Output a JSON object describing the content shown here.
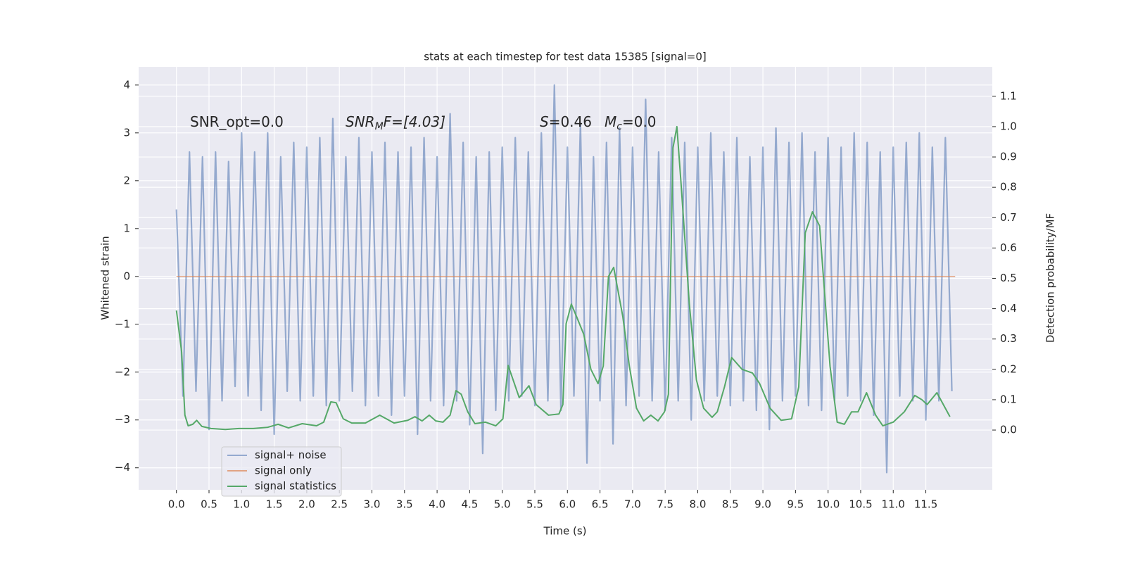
{
  "chart_data": {
    "type": "line",
    "title": "stats at each timestep for test data 15385 [signal=0]",
    "xlabel": "Time (s)",
    "ylabel": "Whitened strain",
    "y2label": "Detection probability/MF",
    "annotations": [
      {
        "plain": "SNR_opt=0.0"
      },
      {
        "italic": "SNR",
        "sub": "M",
        "plain": "F=[4.03]"
      },
      {
        "italic": "S",
        "plain": "=0.46"
      },
      {
        "italic": "M",
        "sub": "c",
        "plain": "=0.0"
      }
    ],
    "xlim": [
      -0.58,
      12.52
    ],
    "ylim": [
      -4.46,
      4.38
    ],
    "y2lim": [
      -0.197,
      1.197
    ],
    "xticks": [
      {
        "value": 0,
        "label": "0.0"
      },
      {
        "value": 0.5,
        "label": "0.5"
      },
      {
        "value": 1,
        "label": "1.0"
      },
      {
        "value": 1.5,
        "label": "1.5"
      },
      {
        "value": 2,
        "label": "2.0"
      },
      {
        "value": 2.5,
        "label": "2.5"
      },
      {
        "value": 3,
        "label": "3.0"
      },
      {
        "value": 3.5,
        "label": "3.5"
      },
      {
        "value": 4,
        "label": "4.0"
      },
      {
        "value": 4.5,
        "label": "4.5"
      },
      {
        "value": 5,
        "label": "5.0"
      },
      {
        "value": 5.5,
        "label": "5.5"
      },
      {
        "value": 6,
        "label": "6.0"
      },
      {
        "value": 6.5,
        "label": "6.5"
      },
      {
        "value": 7,
        "label": "7.0"
      },
      {
        "value": 7.5,
        "label": "7.5"
      },
      {
        "value": 8,
        "label": "8.0"
      },
      {
        "value": 8.5,
        "label": "8.5"
      },
      {
        "value": 9,
        "label": "9.0"
      },
      {
        "value": 9.5,
        "label": "9.5"
      },
      {
        "value": 10,
        "label": "10.0"
      },
      {
        "value": 10.5,
        "label": "10.5"
      },
      {
        "value": 11,
        "label": "11.0"
      },
      {
        "value": 11.5,
        "label": "11.5"
      }
    ],
    "yticks": [
      {
        "value": -4,
        "label": "−4"
      },
      {
        "value": -3,
        "label": "−3"
      },
      {
        "value": -2,
        "label": "−2"
      },
      {
        "value": -1,
        "label": "−1"
      },
      0,
      1,
      2,
      3,
      4
    ],
    "y2ticks": [
      {
        "value": 0,
        "label": "0.0"
      },
      {
        "value": 0.1,
        "label": "0.1"
      },
      {
        "value": 0.2,
        "label": "0.2"
      },
      {
        "value": 0.3,
        "label": "0.3"
      },
      {
        "value": 0.4,
        "label": "0.4"
      },
      {
        "value": 0.5,
        "label": "0.5"
      },
      {
        "value": 0.6,
        "label": "0.6"
      },
      {
        "value": 0.7,
        "label": "0.7"
      },
      {
        "value": 0.8,
        "label": "0.8"
      },
      {
        "value": 0.9,
        "label": "0.9"
      },
      {
        "value": 1,
        "label": "1.0"
      },
      {
        "value": 1.1,
        "label": "1.1"
      }
    ],
    "grid": true,
    "legend": "lower left",
    "series": [
      {
        "name": "signal+ noise",
        "color": "#4c72b0",
        "x": [
          0,
          0.1,
          0.2,
          0.3,
          0.4,
          0.5,
          0.6,
          0.7,
          0.8,
          0.9,
          1,
          1.1,
          1.2,
          1.3,
          1.4,
          1.5,
          1.6,
          1.7,
          1.8,
          1.9,
          2,
          2.1,
          2.2,
          2.3,
          2.4,
          2.5,
          2.6,
          2.7,
          2.8,
          2.9,
          3,
          3.1,
          3.2,
          3.3,
          3.4,
          3.5,
          3.6,
          3.7,
          3.8,
          3.9,
          4,
          4.1,
          4.2,
          4.3,
          4.4,
          4.5,
          4.6,
          4.7,
          4.8,
          4.9,
          5,
          5.1,
          5.2,
          5.3,
          5.4,
          5.5,
          5.6,
          5.7,
          5.8,
          5.9,
          6,
          6.1,
          6.2,
          6.3,
          6.4,
          6.5,
          6.6,
          6.7,
          6.8,
          6.9,
          7,
          7.1,
          7.2,
          7.3,
          7.4,
          7.5,
          7.6,
          7.7,
          7.8,
          7.9,
          8,
          8.1,
          8.2,
          8.3,
          8.4,
          8.5,
          8.6,
          8.7,
          8.8,
          8.9,
          9,
          9.1,
          9.2,
          9.3,
          9.4,
          9.5,
          9.6,
          9.7,
          9.8,
          9.9,
          10,
          10.1,
          10.2,
          10.3,
          10.4,
          10.5,
          10.6,
          10.7,
          10.8,
          10.9,
          11,
          11.1,
          11.2,
          11.3,
          11.4,
          11.5,
          11.6,
          11.7,
          11.8,
          11.9
        ],
        "values": [
          1.4,
          -2.5,
          2.6,
          -2.4,
          2.5,
          -3.2,
          2.6,
          -2.6,
          2.4,
          -2.3,
          3.0,
          -2.5,
          2.6,
          -2.8,
          3.0,
          -3.3,
          2.5,
          -2.4,
          2.8,
          -2.6,
          2.7,
          -2.5,
          2.9,
          -2.7,
          3.3,
          -2.6,
          2.5,
          -2.4,
          2.9,
          -2.7,
          2.6,
          -2.5,
          2.8,
          -2.9,
          2.6,
          -2.5,
          2.7,
          -3.3,
          2.9,
          -2.6,
          2.5,
          -2.7,
          3.4,
          -2.6,
          2.8,
          -3.1,
          2.5,
          -3.7,
          2.6,
          -2.8,
          2.7,
          -2.6,
          2.9,
          -2.5,
          2.6,
          -2.7,
          3.0,
          -2.6,
          4.0,
          -2.8,
          2.7,
          -2.5,
          3.2,
          -3.9,
          2.5,
          -2.6,
          2.8,
          -3.5,
          3.1,
          -2.7,
          2.7,
          -2.5,
          3.7,
          -2.6,
          2.6,
          -2.8,
          2.9,
          -2.6,
          2.8,
          -3.0,
          2.7,
          -2.6,
          3.0,
          -2.5,
          2.6,
          -2.7,
          2.9,
          -2.6,
          2.5,
          -2.8,
          2.7,
          -3.2,
          3.1,
          -2.6,
          2.8,
          -2.5,
          3.0,
          -2.7,
          2.6,
          -2.8,
          2.9,
          -2.6,
          2.7,
          -2.5,
          3.0,
          -2.6,
          2.8,
          -2.9,
          2.6,
          -4.1,
          2.7,
          -2.5,
          2.8,
          -2.6,
          3.0,
          -3.0,
          2.7,
          -2.6,
          2.9,
          -2.4
        ]
      },
      {
        "name": "signal only",
        "color": "#dd8452",
        "x": [
          0,
          11.95
        ],
        "values": [
          0,
          0
        ]
      },
      {
        "name": "signal statistics",
        "color": "#55a868",
        "axis": "y2",
        "x": [
          0,
          0.08,
          0.13,
          0.18,
          0.25,
          0.31,
          0.39,
          0.53,
          0.75,
          0.96,
          1.18,
          1.4,
          1.56,
          1.72,
          1.93,
          2.15,
          2.26,
          2.37,
          2.45,
          2.56,
          2.69,
          2.9,
          3.12,
          3.34,
          3.55,
          3.66,
          3.77,
          3.88,
          3.98,
          4.09,
          4.2,
          4.29,
          4.37,
          4.47,
          4.58,
          4.74,
          4.9,
          5.01,
          5.09,
          5.26,
          5.33,
          5.41,
          5.52,
          5.71,
          5.87,
          5.93,
          5.98,
          6.06,
          6.14,
          6.25,
          6.36,
          6.47,
          6.55,
          6.63,
          6.71,
          6.85,
          6.95,
          7.06,
          7.17,
          7.28,
          7.39,
          7.49,
          7.55,
          7.62,
          7.68,
          7.74,
          7.87,
          7.98,
          8.09,
          8.22,
          8.3,
          8.41,
          8.52,
          8.68,
          8.84,
          8.95,
          9.11,
          9.28,
          9.44,
          9.55,
          9.65,
          9.76,
          9.87,
          10.03,
          10.14,
          10.25,
          10.36,
          10.46,
          10.59,
          10.73,
          10.84,
          11,
          11.17,
          11.33,
          11.44,
          11.52,
          11.67,
          11.87
        ],
        "values": [
          0.394,
          0.257,
          0.049,
          0.014,
          0.019,
          0.032,
          0.012,
          0.005,
          0.002,
          0.005,
          0.005,
          0.009,
          0.019,
          0.007,
          0.021,
          0.014,
          0.026,
          0.093,
          0.09,
          0.037,
          0.023,
          0.023,
          0.049,
          0.023,
          0.032,
          0.044,
          0.03,
          0.049,
          0.03,
          0.026,
          0.049,
          0.13,
          0.118,
          0.06,
          0.021,
          0.026,
          0.014,
          0.037,
          0.213,
          0.107,
          0.125,
          0.146,
          0.084,
          0.049,
          0.053,
          0.084,
          0.35,
          0.415,
          0.374,
          0.316,
          0.2,
          0.153,
          0.211,
          0.506,
          0.536,
          0.374,
          0.211,
          0.072,
          0.03,
          0.049,
          0.03,
          0.06,
          0.118,
          0.93,
          1.0,
          0.824,
          0.418,
          0.165,
          0.072,
          0.042,
          0.06,
          0.142,
          0.239,
          0.2,
          0.188,
          0.153,
          0.072,
          0.032,
          0.037,
          0.142,
          0.65,
          0.719,
          0.673,
          0.211,
          0.026,
          0.019,
          0.06,
          0.06,
          0.123,
          0.049,
          0.014,
          0.026,
          0.06,
          0.114,
          0.1,
          0.084,
          0.123,
          0.044
        ]
      }
    ]
  }
}
